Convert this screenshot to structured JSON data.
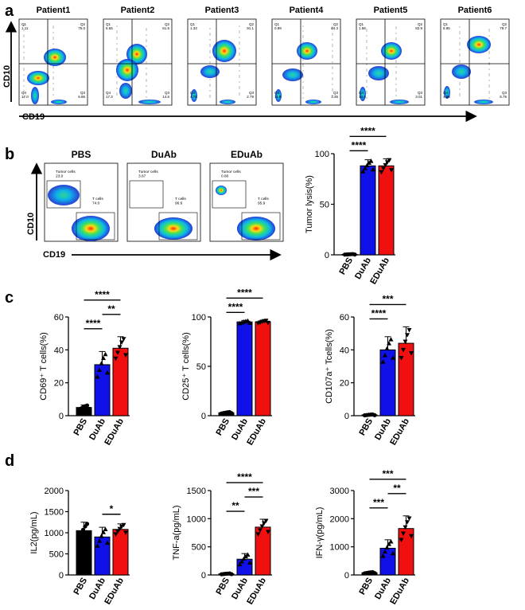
{
  "panels": {
    "a": {
      "label": "a",
      "patients": [
        "Patient1",
        "Patient2",
        "Patient3",
        "Patient4",
        "Patient5",
        "Patient6"
      ],
      "y_axis": "CD10",
      "x_axis": "CD19",
      "quadrants": [
        {
          "q1": "Q1\n1.11",
          "q2": "Q2\n75.0",
          "q3": "Q3\n6.86",
          "q4": "Q4\n17.0"
        },
        {
          "q1": "Q1\n6.55",
          "q2": "Q2\n61.5",
          "q3": "Q3\n14.6",
          "q4": "Q4\n17.3"
        },
        {
          "q1": "Q1\n1.33",
          "q2": "Q2\n91.1",
          "q3": "Q3\n2.79",
          "q4": "Q4\n4.75"
        },
        {
          "q1": "Q1\n0.99",
          "q2": "Q2\n84.3",
          "q3": "Q3\n3.35",
          "q4": "Q4\n11.9"
        },
        {
          "q1": "Q1\n1.58",
          "q2": "Q2\n82.9",
          "q3": "Q3\n3.01",
          "q4": "Q4\n10.4"
        },
        {
          "q1": "Q1\n8.95",
          "q2": "Q2\n79.7",
          "q3": "Q3\n6.75",
          "q4": "Q4\n4.56"
        }
      ]
    },
    "b": {
      "label": "b",
      "groups": [
        "PBS",
        "DuAb",
        "EDuAb"
      ],
      "y_axis": "CD10",
      "x_axis": "CD19",
      "gates": [
        {
          "tumor": "Tumor cells\n23.0",
          "t": "T cells\n74.0"
        },
        {
          "tumor": "Tumor cells\n3.67",
          "t": "T cells\n96.6"
        },
        {
          "tumor": "Tumor cells\n0.80",
          "t": "T cells\n95.9"
        }
      ]
    },
    "c": {
      "label": "c"
    },
    "d": {
      "label": "d"
    }
  },
  "colors": {
    "PBS": "#000000",
    "DuAb": "#1010e8",
    "EDuAb": "#f01010"
  },
  "chart_data": [
    {
      "id": "tumor-lysis",
      "type": "bar",
      "panel": "b",
      "categories": [
        "PBS",
        "DuAb",
        "EDuAb"
      ],
      "values": [
        0.5,
        88,
        88
      ],
      "errors": [
        0.3,
        6,
        7
      ],
      "ylabel": "Tumor lysis(%)",
      "ylim": [
        0,
        100
      ],
      "yticks": [
        0,
        50,
        100
      ],
      "significance": [
        {
          "from": 0,
          "to": 1,
          "label": "****"
        },
        {
          "from": 0,
          "to": 2,
          "label": "****"
        }
      ]
    },
    {
      "id": "cd69",
      "type": "bar",
      "panel": "c",
      "categories": [
        "PBS",
        "DuAb",
        "EDuAb"
      ],
      "values": [
        5,
        31,
        41
      ],
      "errors": [
        1.5,
        8,
        7
      ],
      "ylabel": "CD69⁺ T cells(%)",
      "ylim": [
        0,
        60
      ],
      "yticks": [
        0,
        20,
        40,
        60
      ],
      "significance": [
        {
          "from": 0,
          "to": 1,
          "label": "****"
        },
        {
          "from": 1,
          "to": 2,
          "label": "**"
        },
        {
          "from": 0,
          "to": 2,
          "label": "****"
        }
      ]
    },
    {
      "id": "cd25",
      "type": "bar",
      "panel": "c",
      "categories": [
        "PBS",
        "DuAb",
        "EDuAb"
      ],
      "values": [
        3,
        95,
        95
      ],
      "errors": [
        0.8,
        1.5,
        1.5
      ],
      "ylabel": "CD25⁺ T cells(%)",
      "ylim": [
        0,
        100
      ],
      "yticks": [
        0,
        50,
        100
      ],
      "significance": [
        {
          "from": 0,
          "to": 1,
          "label": "****"
        },
        {
          "from": 0,
          "to": 2,
          "label": "****"
        }
      ]
    },
    {
      "id": "cd107a",
      "type": "bar",
      "panel": "c",
      "categories": [
        "PBS",
        "DuAb",
        "EDuAb"
      ],
      "values": [
        0.5,
        40,
        44
      ],
      "errors": [
        0.3,
        8,
        10
      ],
      "ylabel": "CD107a⁺ Tcells(%)",
      "ylim": [
        0,
        60
      ],
      "yticks": [
        0,
        20,
        40,
        60
      ],
      "significance": [
        {
          "from": 0,
          "to": 1,
          "label": "****"
        },
        {
          "from": 0,
          "to": 2,
          "label": "***"
        }
      ]
    },
    {
      "id": "il2",
      "type": "bar",
      "panel": "d",
      "categories": [
        "PBS",
        "DuAb",
        "EDuAb"
      ],
      "values": [
        1050,
        900,
        1080
      ],
      "errors": [
        200,
        230,
        130
      ],
      "ylabel": "IL2(pg/mL)",
      "ylim": [
        0,
        2000
      ],
      "yticks": [
        0,
        500,
        1000,
        1500,
        2000
      ],
      "significance": [
        {
          "from": 1,
          "to": 2,
          "label": "*"
        }
      ]
    },
    {
      "id": "tnf",
      "type": "bar",
      "panel": "d",
      "categories": [
        "PBS",
        "DuAb",
        "EDuAb"
      ],
      "values": [
        20,
        280,
        850
      ],
      "errors": [
        8,
        100,
        140
      ],
      "ylabel": "TNF-a(pg/mL)",
      "ylim": [
        0,
        1500
      ],
      "yticks": [
        0,
        500,
        1000,
        1500
      ],
      "significance": [
        {
          "from": 0,
          "to": 1,
          "label": "**"
        },
        {
          "from": 1,
          "to": 2,
          "label": "***"
        },
        {
          "from": 0,
          "to": 2,
          "label": "****"
        }
      ]
    },
    {
      "id": "ifng",
      "type": "bar",
      "panel": "d",
      "categories": [
        "PBS",
        "DuAb",
        "EDuAb"
      ],
      "values": [
        80,
        950,
        1650
      ],
      "errors": [
        25,
        300,
        450
      ],
      "ylabel": "IFN-γ(pg/mL)",
      "ylim": [
        0,
        3000
      ],
      "yticks": [
        0,
        1000,
        2000,
        3000
      ],
      "significance": [
        {
          "from": 0,
          "to": 1,
          "label": "***"
        },
        {
          "from": 1,
          "to": 2,
          "label": "**"
        },
        {
          "from": 0,
          "to": 2,
          "label": "***"
        }
      ]
    }
  ]
}
